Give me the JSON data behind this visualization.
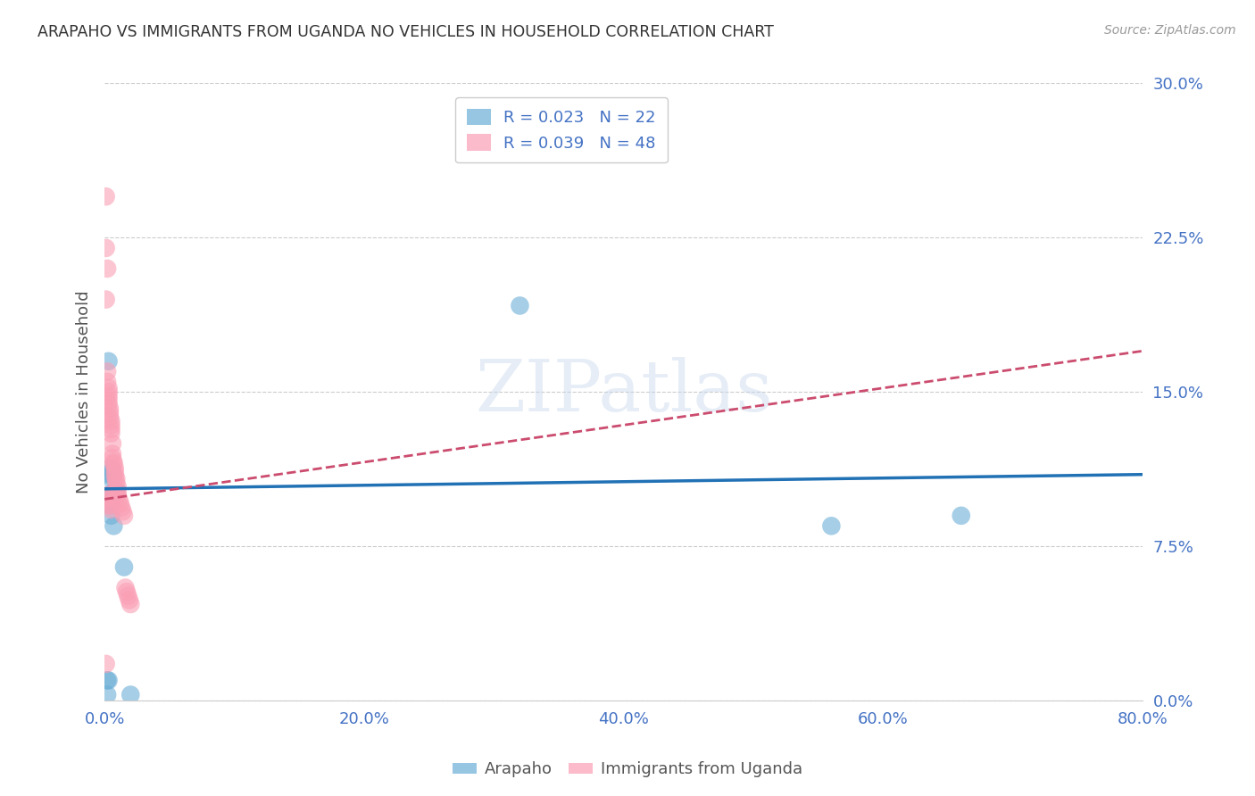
{
  "title": "ARAPAHO VS IMMIGRANTS FROM UGANDA NO VEHICLES IN HOUSEHOLD CORRELATION CHART",
  "source": "Source: ZipAtlas.com",
  "ylabel": "No Vehicles in Household",
  "xlim": [
    0.0,
    0.8
  ],
  "ylim": [
    0.0,
    0.3
  ],
  "xtick_vals": [
    0.0,
    0.2,
    0.4,
    0.6,
    0.8
  ],
  "ytick_vals": [
    0.0,
    0.075,
    0.15,
    0.225,
    0.3
  ],
  "xtick_labels": [
    "0.0%",
    "20.0%",
    "40.0%",
    "60.0%",
    "80.0%"
  ],
  "ytick_labels": [
    "0.0%",
    "7.5%",
    "15.0%",
    "22.5%",
    "30.0%"
  ],
  "legend_r_labels": [
    "R = 0.023   N = 22",
    "R = 0.039   N = 48"
  ],
  "legend_labels": [
    "Arapaho",
    "Immigrants from Uganda"
  ],
  "arapaho_color": "#6baed6",
  "uganda_color": "#fa9fb5",
  "arapaho_line_color": "#2171b5",
  "uganda_line_color": "#cb4c6e",
  "watermark": "ZIPatlas",
  "background_color": "#ffffff",
  "grid_color": "#cccccc",
  "tick_color": "#4472c4",
  "title_color": "#333333",
  "source_color": "#999999",
  "ylabel_color": "#555555",
  "arapaho_x": [
    0.002,
    0.002,
    0.003,
    0.003,
    0.003,
    0.003,
    0.004,
    0.004,
    0.004,
    0.005,
    0.005,
    0.005,
    0.006,
    0.006,
    0.007,
    0.008,
    0.009,
    0.015,
    0.02,
    0.32,
    0.56,
    0.66
  ],
  "arapaho_y": [
    0.003,
    0.01,
    0.01,
    0.11,
    0.1,
    0.165,
    0.095,
    0.1,
    0.113,
    0.09,
    0.098,
    0.108,
    0.11,
    0.112,
    0.085,
    0.102,
    0.102,
    0.065,
    0.003,
    0.192,
    0.085,
    0.09
  ],
  "uganda_x": [
    0.001,
    0.001,
    0.001,
    0.001,
    0.002,
    0.002,
    0.002,
    0.002,
    0.003,
    0.003,
    0.003,
    0.003,
    0.003,
    0.003,
    0.004,
    0.004,
    0.004,
    0.005,
    0.005,
    0.005,
    0.005,
    0.005,
    0.005,
    0.005,
    0.006,
    0.006,
    0.006,
    0.006,
    0.007,
    0.007,
    0.008,
    0.008,
    0.008,
    0.009,
    0.009,
    0.01,
    0.01,
    0.01,
    0.011,
    0.012,
    0.013,
    0.014,
    0.015,
    0.016,
    0.017,
    0.018,
    0.019,
    0.02
  ],
  "uganda_y": [
    0.245,
    0.22,
    0.195,
    0.018,
    0.21,
    0.16,
    0.155,
    0.1,
    0.152,
    0.15,
    0.148,
    0.146,
    0.144,
    0.095,
    0.142,
    0.14,
    0.138,
    0.136,
    0.134,
    0.132,
    0.13,
    0.098,
    0.095,
    0.093,
    0.125,
    0.12,
    0.118,
    0.1,
    0.116,
    0.115,
    0.113,
    0.111,
    0.109,
    0.108,
    0.106,
    0.104,
    0.102,
    0.1,
    0.098,
    0.096,
    0.094,
    0.092,
    0.09,
    0.055,
    0.053,
    0.051,
    0.049,
    0.047
  ]
}
